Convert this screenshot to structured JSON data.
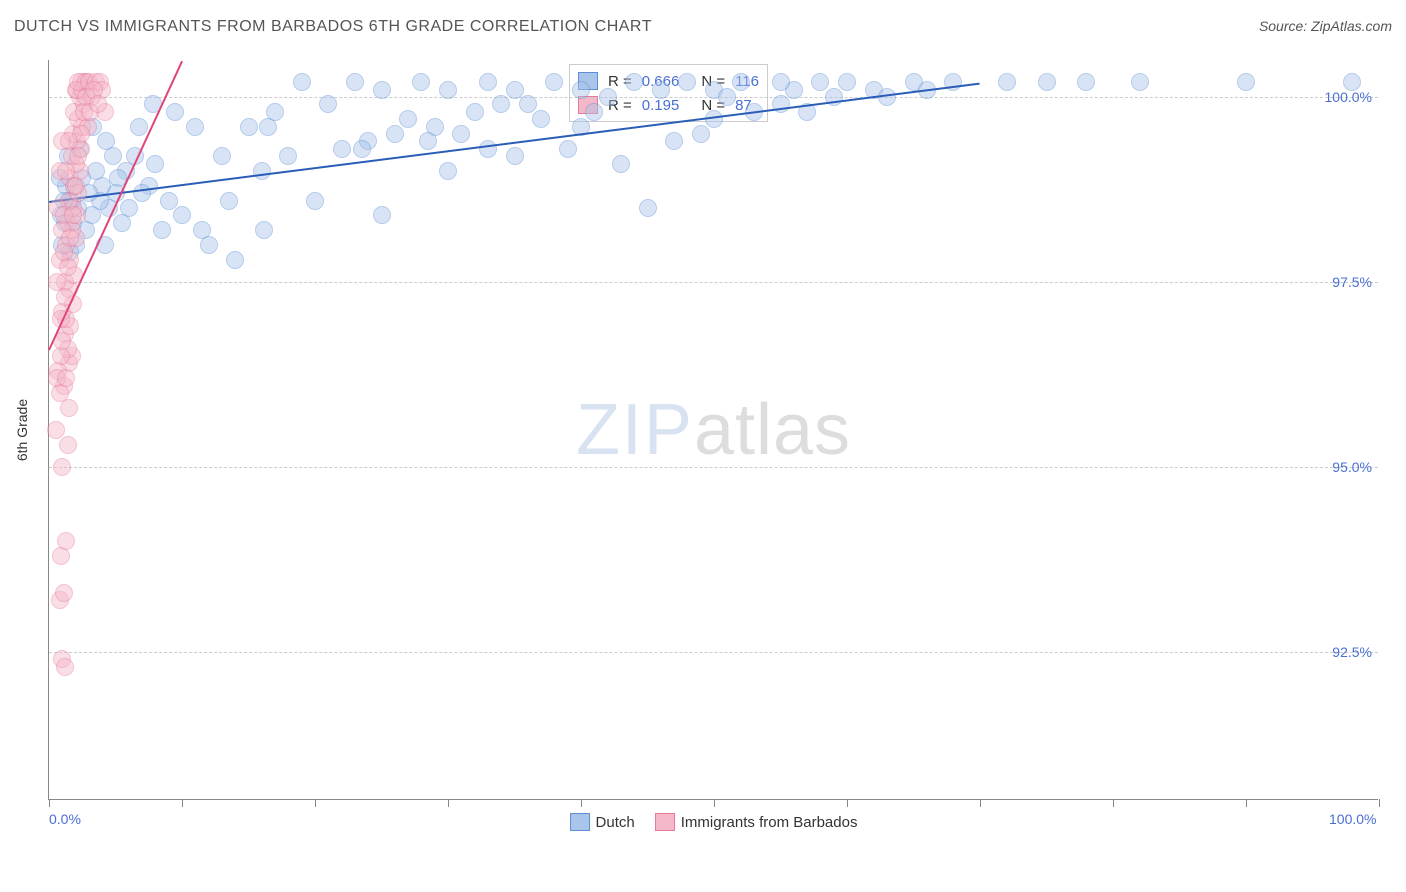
{
  "title": "DUTCH VS IMMIGRANTS FROM BARBADOS 6TH GRADE CORRELATION CHART",
  "source": "Source: ZipAtlas.com",
  "watermark": {
    "part1": "ZIP",
    "part2": "atlas"
  },
  "y_axis_label": "6th Grade",
  "chart": {
    "type": "scatter",
    "background_color": "#ffffff",
    "grid_color": "#cccccc",
    "axis_color": "#888888",
    "xlim": [
      0,
      100
    ],
    "ylim": [
      90.5,
      100.5
    ],
    "xticks": [
      0,
      10,
      20,
      30,
      40,
      50,
      60,
      70,
      80,
      90,
      100
    ],
    "xtick_labels": {
      "0": "0.0%",
      "100": "100.0%"
    },
    "yticks": [
      92.5,
      95.0,
      97.5,
      100.0
    ],
    "ytick_labels": [
      "92.5%",
      "95.0%",
      "97.5%",
      "100.0%"
    ],
    "marker_radius": 9,
    "marker_opacity": 0.45,
    "series": [
      {
        "name": "Dutch",
        "color_fill": "#a9c5ea",
        "color_stroke": "#5d8fd4",
        "trend_color": "#2a5db8",
        "trend": {
          "x1": 0,
          "y1": 98.6,
          "x2": 70,
          "y2": 100.2
        },
        "R": "0.666",
        "N": "116",
        "points": [
          [
            72,
            100.2
          ],
          [
            75,
            100.2
          ],
          [
            78,
            100.2
          ],
          [
            82,
            100.2
          ],
          [
            90,
            100.2
          ],
          [
            98,
            100.2
          ],
          [
            68,
            100.2
          ],
          [
            65,
            100.2
          ],
          [
            62,
            100.1
          ],
          [
            60,
            100.2
          ],
          [
            58,
            100.2
          ],
          [
            56,
            100.1
          ],
          [
            55,
            100.2
          ],
          [
            52,
            100.2
          ],
          [
            50,
            100.1
          ],
          [
            48,
            100.2
          ],
          [
            46,
            100.1
          ],
          [
            44,
            100.2
          ],
          [
            42,
            100.0
          ],
          [
            40,
            100.1
          ],
          [
            38,
            100.2
          ],
          [
            36,
            99.9
          ],
          [
            35,
            100.1
          ],
          [
            33,
            100.2
          ],
          [
            32,
            99.8
          ],
          [
            30,
            100.1
          ],
          [
            29,
            99.6
          ],
          [
            28,
            100.2
          ],
          [
            27,
            99.7
          ],
          [
            26,
            99.5
          ],
          [
            25,
            100.1
          ],
          [
            24,
            99.4
          ],
          [
            23,
            100.2
          ],
          [
            22,
            99.3
          ],
          [
            21,
            99.9
          ],
          [
            20,
            98.6
          ],
          [
            19,
            100.2
          ],
          [
            18,
            99.2
          ],
          [
            17,
            99.8
          ],
          [
            16,
            99.0
          ],
          [
            15,
            99.6
          ],
          [
            14,
            97.8
          ],
          [
            13,
            99.2
          ],
          [
            12,
            98.0
          ],
          [
            11,
            99.6
          ],
          [
            10,
            98.4
          ],
          [
            9.5,
            99.8
          ],
          [
            9,
            98.6
          ],
          [
            8.5,
            98.2
          ],
          [
            8,
            99.1
          ],
          [
            7.5,
            98.8
          ],
          [
            7,
            98.7
          ],
          [
            6.5,
            99.2
          ],
          [
            6,
            98.5
          ],
          [
            5.8,
            99.0
          ],
          [
            5.5,
            98.3
          ],
          [
            5.2,
            98.9
          ],
          [
            5,
            98.7
          ],
          [
            4.8,
            99.2
          ],
          [
            4.5,
            98.5
          ],
          [
            4.2,
            98.0
          ],
          [
            4,
            98.8
          ],
          [
            3.8,
            98.6
          ],
          [
            3.5,
            99.0
          ],
          [
            3.2,
            98.4
          ],
          [
            3,
            98.7
          ],
          [
            2.8,
            98.2
          ],
          [
            2.5,
            98.9
          ],
          [
            2.2,
            98.5
          ],
          [
            2,
            98.0
          ],
          [
            1.9,
            98.8
          ],
          [
            1.8,
            98.3
          ],
          [
            1.7,
            98.6
          ],
          [
            1.6,
            97.9
          ],
          [
            45,
            98.5
          ],
          [
            30,
            99.0
          ],
          [
            25,
            98.4
          ],
          [
            40,
            99.6
          ],
          [
            35,
            99.2
          ],
          [
            50,
            99.7
          ],
          [
            55,
            99.9
          ],
          [
            47,
            99.4
          ],
          [
            53,
            99.8
          ],
          [
            43,
            99.1
          ],
          [
            37,
            99.7
          ],
          [
            33,
            99.3
          ],
          [
            31,
            99.5
          ],
          [
            16.5,
            99.6
          ],
          [
            13.5,
            98.6
          ],
          [
            11.5,
            98.2
          ],
          [
            39,
            99.3
          ],
          [
            41,
            99.8
          ],
          [
            49,
            99.5
          ],
          [
            51,
            100.0
          ],
          [
            57,
            99.8
          ],
          [
            59,
            100.0
          ],
          [
            63,
            100.0
          ],
          [
            66,
            100.1
          ],
          [
            1.5,
            98.6
          ],
          [
            2.3,
            99.3
          ],
          [
            3.3,
            99.6
          ],
          [
            4.3,
            99.4
          ],
          [
            6.8,
            99.6
          ],
          [
            7.8,
            99.9
          ],
          [
            1.4,
            99.2
          ],
          [
            1.3,
            98.8
          ],
          [
            1.2,
            98.3
          ],
          [
            1.1,
            98.6
          ],
          [
            1.0,
            98.0
          ],
          [
            0.9,
            98.4
          ],
          [
            0.8,
            98.9
          ],
          [
            16.2,
            98.2
          ],
          [
            23.5,
            99.3
          ],
          [
            28.5,
            99.4
          ],
          [
            34,
            99.9
          ]
        ]
      },
      {
        "name": "Immigrants from Barbados",
        "color_fill": "#f4b8c8",
        "color_stroke": "#e67a9a",
        "trend_color": "#e0457a",
        "trend": {
          "x1": 0,
          "y1": 96.6,
          "x2": 10,
          "y2": 100.5
        },
        "R": "0.195",
        "N": "87",
        "points": [
          [
            1.0,
            92.4
          ],
          [
            1.2,
            92.3
          ],
          [
            0.8,
            93.2
          ],
          [
            1.1,
            93.3
          ],
          [
            0.9,
            93.8
          ],
          [
            1.3,
            94.0
          ],
          [
            1.0,
            95.0
          ],
          [
            1.4,
            95.3
          ],
          [
            1.1,
            96.1
          ],
          [
            1.5,
            96.4
          ],
          [
            1.2,
            96.8
          ],
          [
            1.6,
            96.9
          ],
          [
            1.3,
            97.0
          ],
          [
            1.0,
            97.1
          ],
          [
            1.7,
            96.5
          ],
          [
            1.4,
            96.6
          ],
          [
            1.8,
            97.2
          ],
          [
            1.5,
            97.4
          ],
          [
            1.2,
            97.5
          ],
          [
            1.9,
            97.6
          ],
          [
            1.6,
            97.8
          ],
          [
            1.3,
            98.0
          ],
          [
            2.0,
            98.1
          ],
          [
            1.7,
            98.2
          ],
          [
            1.4,
            98.3
          ],
          [
            2.1,
            98.4
          ],
          [
            1.8,
            98.5
          ],
          [
            1.5,
            98.6
          ],
          [
            2.2,
            98.7
          ],
          [
            1.9,
            98.8
          ],
          [
            1.6,
            98.9
          ],
          [
            2.3,
            99.0
          ],
          [
            2.0,
            99.1
          ],
          [
            1.7,
            99.2
          ],
          [
            2.4,
            99.3
          ],
          [
            2.1,
            99.4
          ],
          [
            1.8,
            99.5
          ],
          [
            2.5,
            99.6
          ],
          [
            2.2,
            99.7
          ],
          [
            1.9,
            99.8
          ],
          [
            2.6,
            99.9
          ],
          [
            2.3,
            100.0
          ],
          [
            2.0,
            100.1
          ],
          [
            2.7,
            100.2
          ],
          [
            2.4,
            100.2
          ],
          [
            2.1,
            100.1
          ],
          [
            2.8,
            100.2
          ],
          [
            2.5,
            100.1
          ],
          [
            2.2,
            100.2
          ],
          [
            3.0,
            100.2
          ],
          [
            0.7,
            96.3
          ],
          [
            0.8,
            96.0
          ],
          [
            0.9,
            97.0
          ],
          [
            0.7,
            98.5
          ],
          [
            0.8,
            99.0
          ],
          [
            0.6,
            97.5
          ],
          [
            1.0,
            99.4
          ],
          [
            1.1,
            98.4
          ],
          [
            2.9,
            99.6
          ],
          [
            3.2,
            100.0
          ],
          [
            3.5,
            100.2
          ],
          [
            3.8,
            100.2
          ],
          [
            4.0,
            100.1
          ],
          [
            4.2,
            99.8
          ],
          [
            0.5,
            95.5
          ],
          [
            0.6,
            96.2
          ],
          [
            1.3,
            96.2
          ],
          [
            1.5,
            95.8
          ],
          [
            0.9,
            96.5
          ],
          [
            0.8,
            97.8
          ],
          [
            1.0,
            98.2
          ],
          [
            1.2,
            97.3
          ],
          [
            1.4,
            97.7
          ],
          [
            1.6,
            98.1
          ],
          [
            1.8,
            98.4
          ],
          [
            2.0,
            98.8
          ],
          [
            2.2,
            99.2
          ],
          [
            2.4,
            99.5
          ],
          [
            2.6,
            99.8
          ],
          [
            2.8,
            100.0
          ],
          [
            3.1,
            99.8
          ],
          [
            3.4,
            100.1
          ],
          [
            3.7,
            99.9
          ],
          [
            1.0,
            96.7
          ],
          [
            1.1,
            97.9
          ],
          [
            1.3,
            99.0
          ],
          [
            1.5,
            99.4
          ]
        ]
      }
    ]
  },
  "stats_box": {
    "rows": [
      {
        "swatch_fill": "#a9c5ea",
        "swatch_stroke": "#5d8fd4",
        "r_label": "R =",
        "r_val": "0.666",
        "n_label": "N =",
        "n_val": "116"
      },
      {
        "swatch_fill": "#f4b8c8",
        "swatch_stroke": "#e67a9a",
        "r_label": "R =",
        "r_val": "0.195",
        "n_label": "N =",
        "n_val": "87"
      }
    ]
  },
  "bottom_legend": [
    {
      "swatch_fill": "#a9c5ea",
      "swatch_stroke": "#5d8fd4",
      "label": "Dutch"
    },
    {
      "swatch_fill": "#f4b8c8",
      "swatch_stroke": "#e67a9a",
      "label": "Immigrants from Barbados"
    }
  ]
}
